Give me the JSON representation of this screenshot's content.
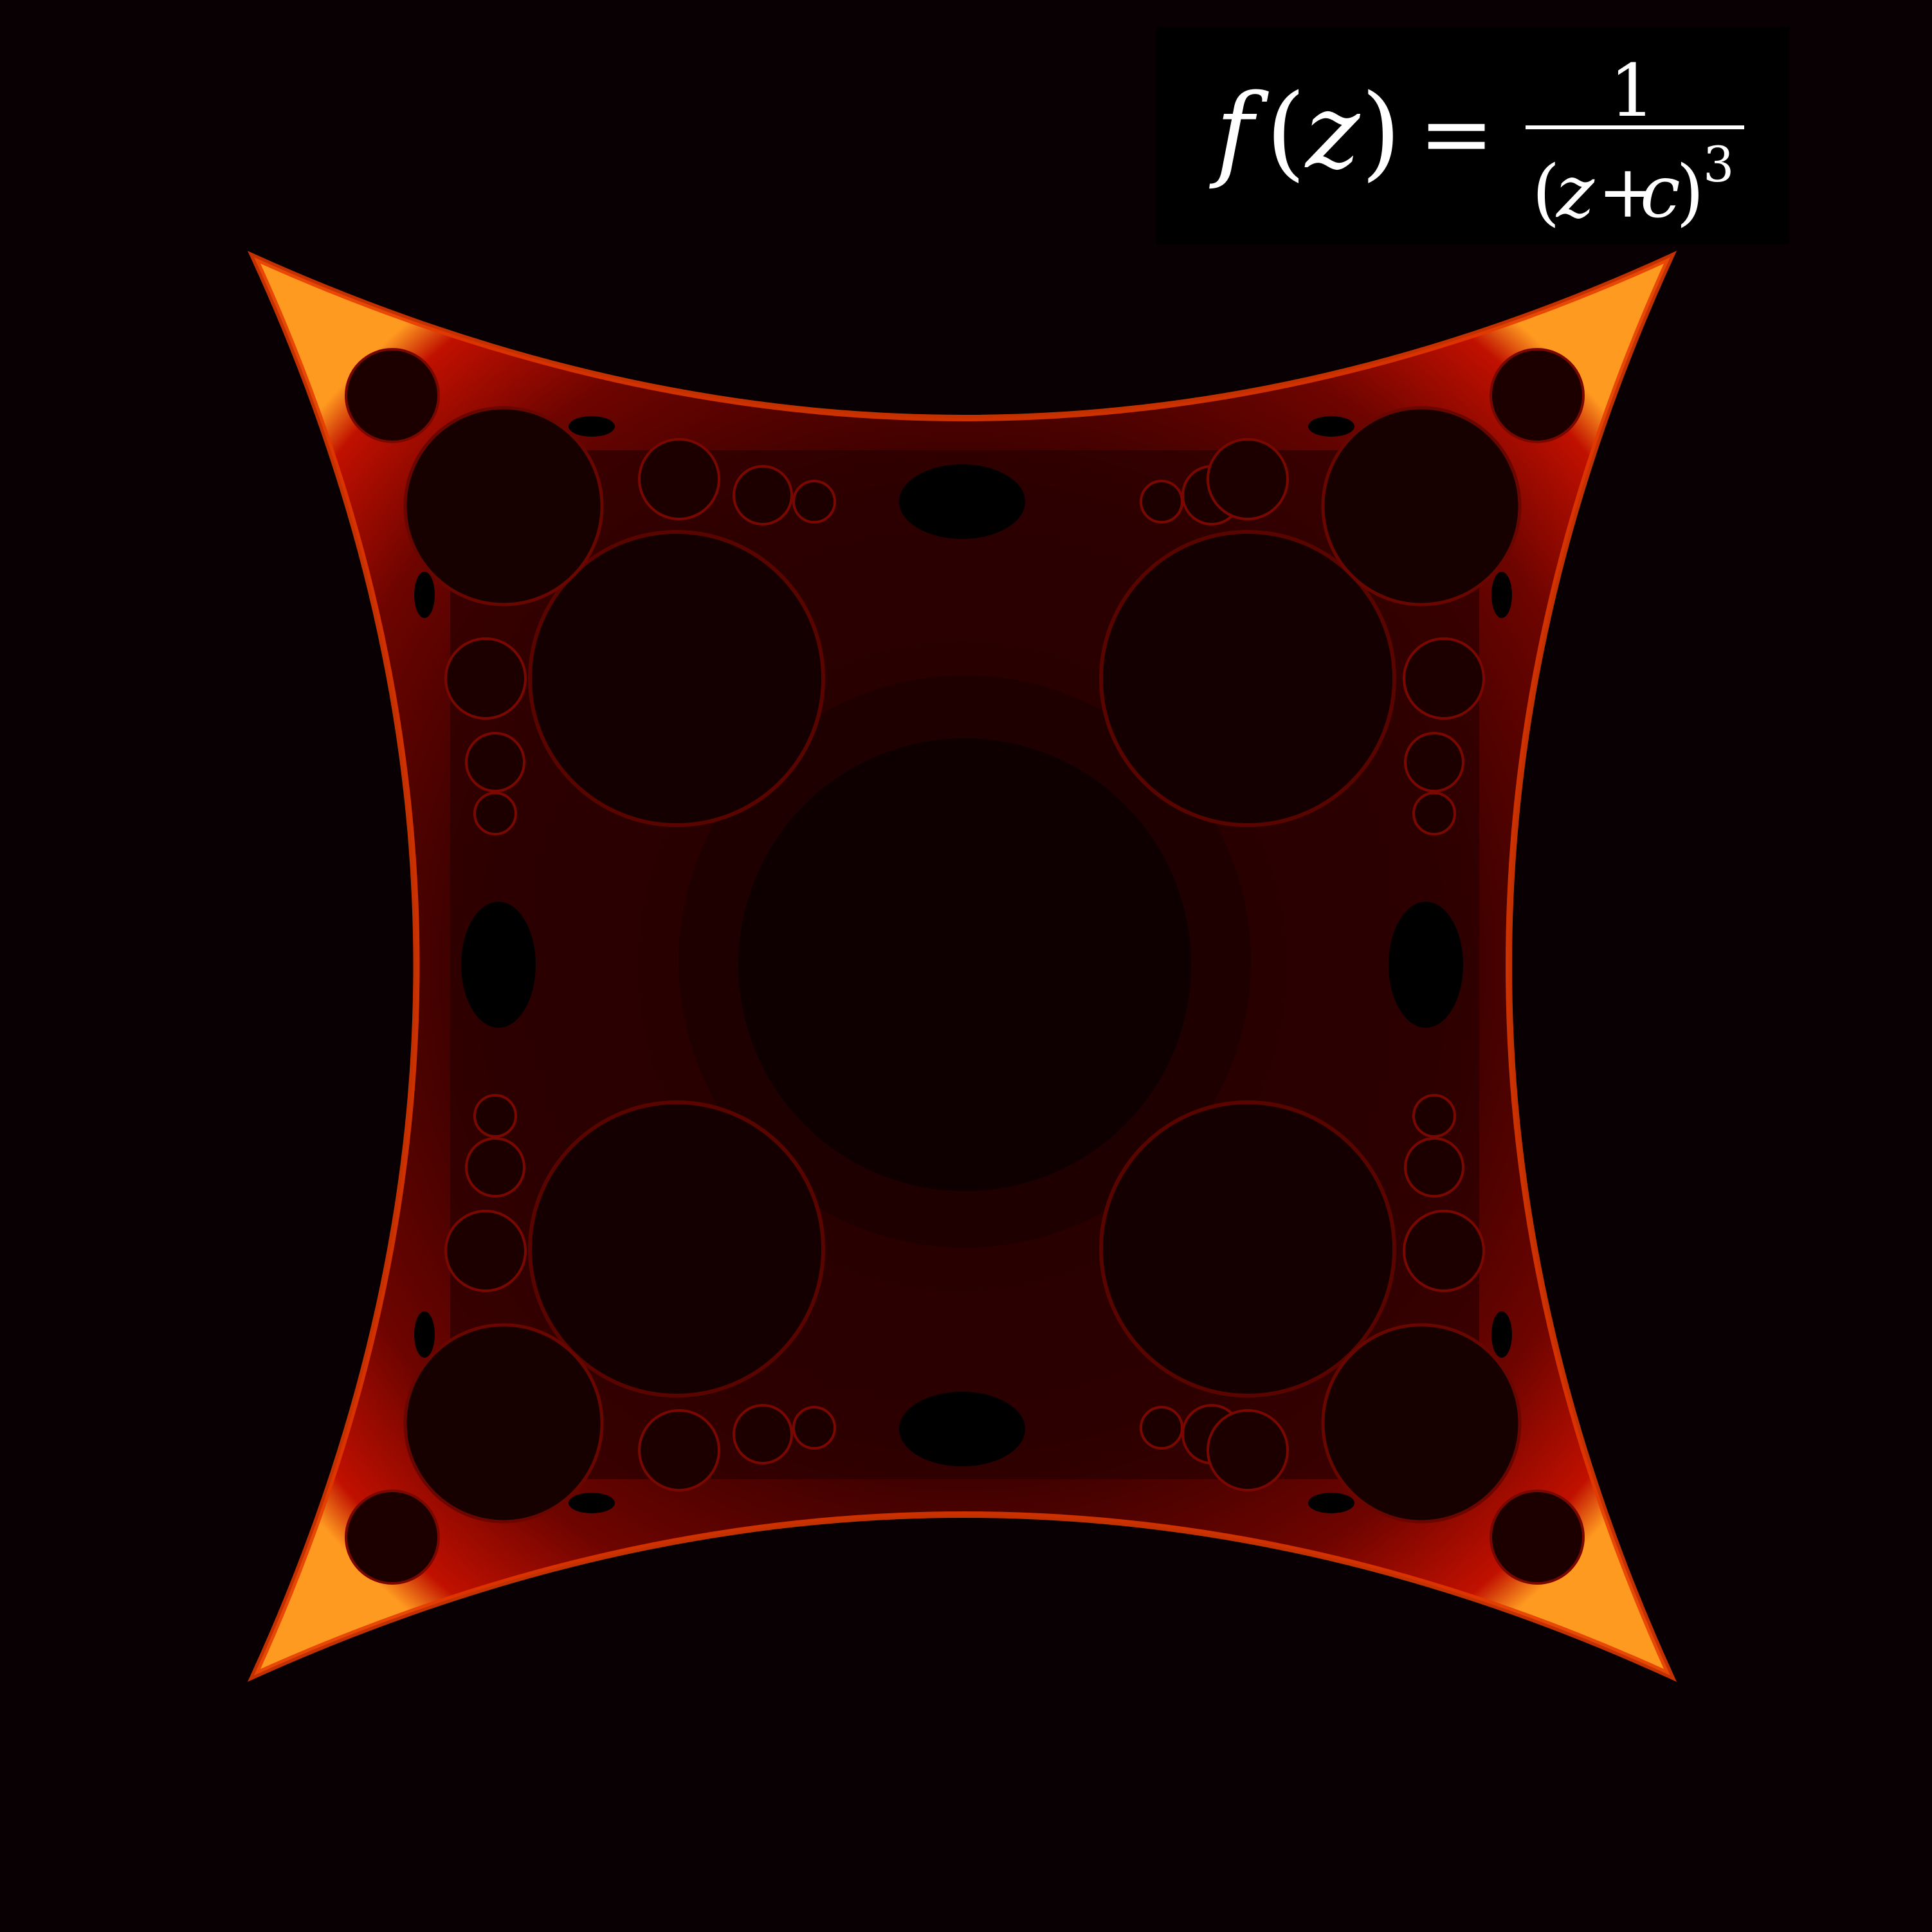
{
  "formula": {
    "lhs": "f",
    "lhs_open": "(",
    "lhs_var": "z",
    "lhs_close": ")",
    "equals": "=",
    "numerator": "1",
    "den_open": "(",
    "den_z": "z",
    "den_plus": "+",
    "den_c": "c",
    "den_close": ")",
    "exponent": "3"
  },
  "colors": {
    "background": "#080002",
    "formula_background": "#000000",
    "formula_text": "#ffffff",
    "set_interior": "#140000",
    "set_mid": "#3a0000",
    "set_glow": "#d21400",
    "set_edge": "#ffd84a"
  }
}
